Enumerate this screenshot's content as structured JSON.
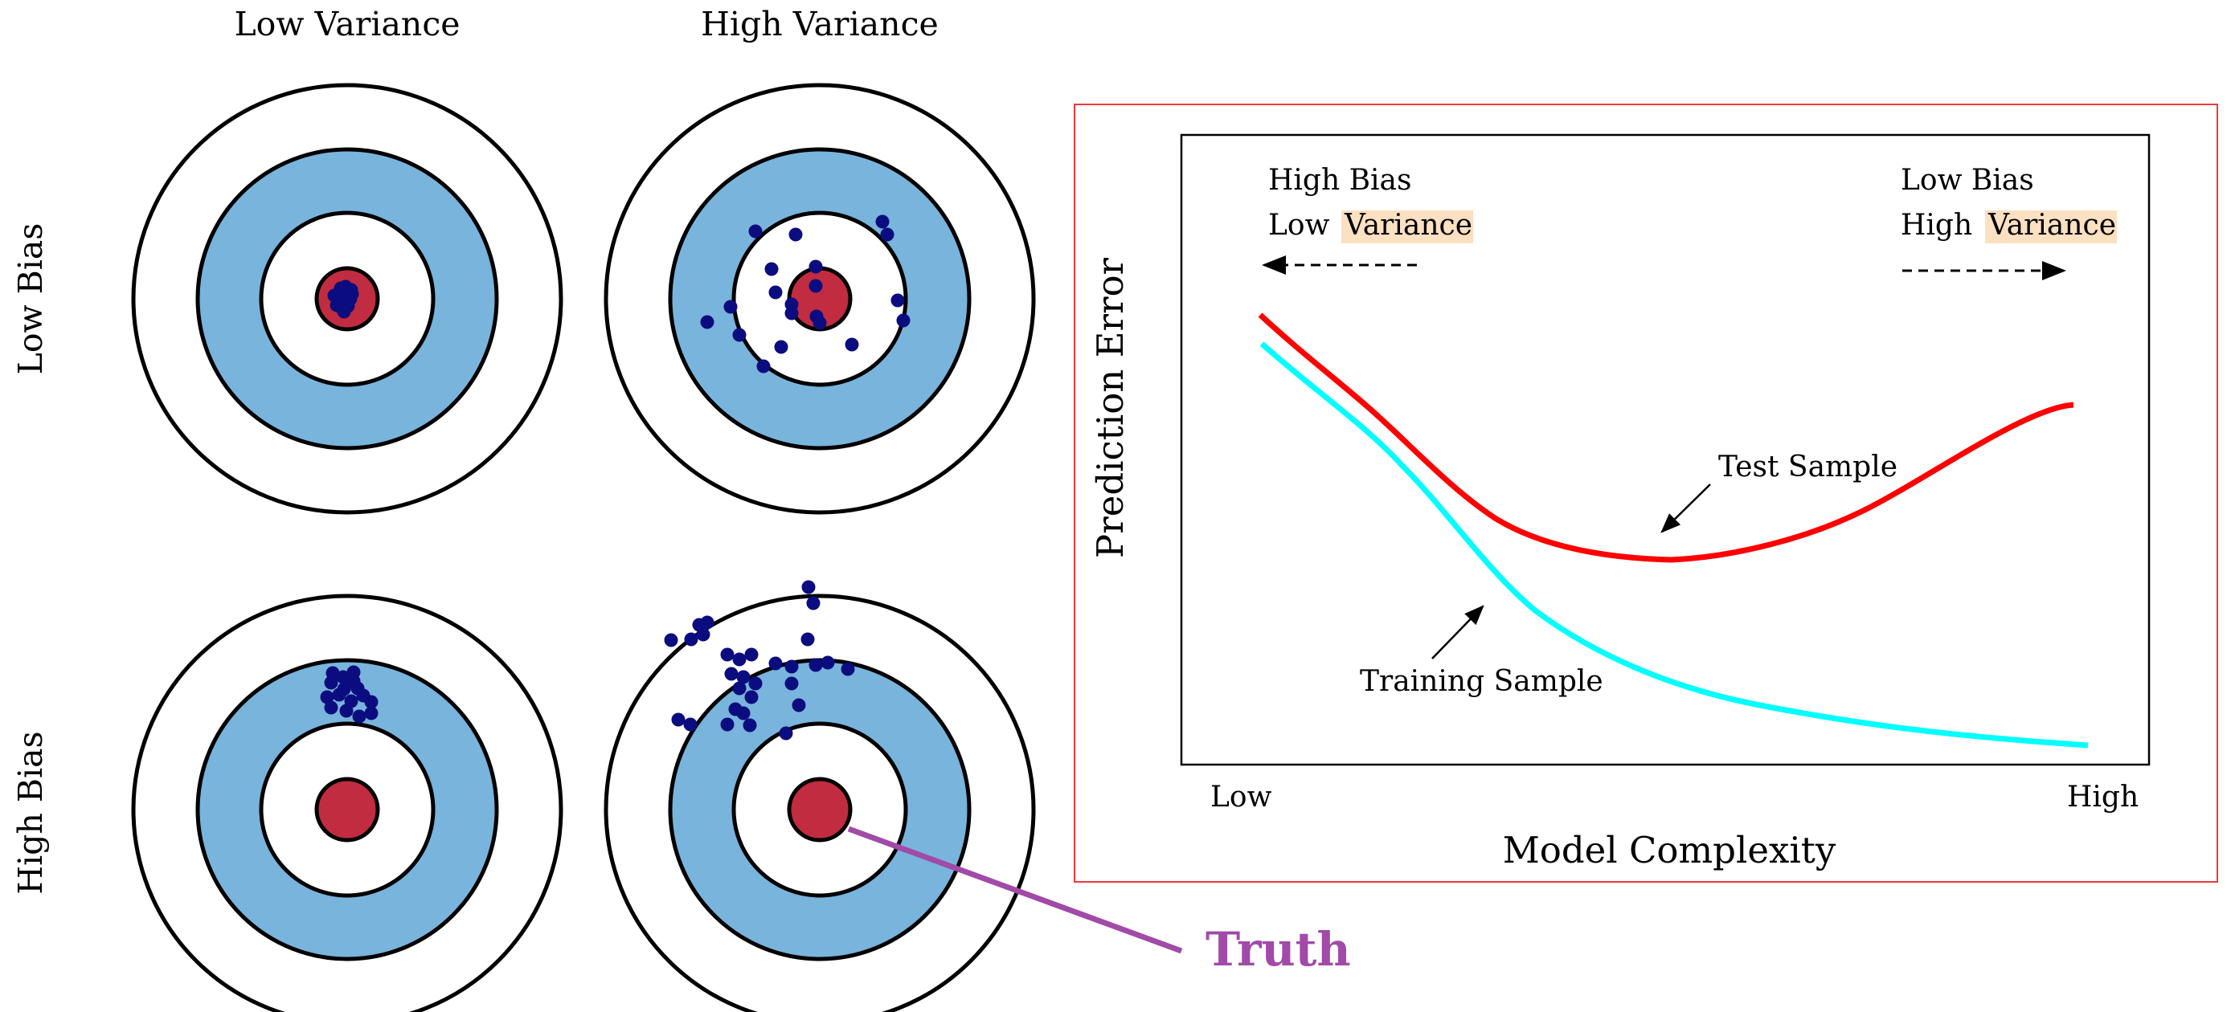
{
  "columns": {
    "low_variance": "Low Variance",
    "high_variance": "High Variance"
  },
  "rows": {
    "low_bias": "Low Bias",
    "high_bias": "High Bias"
  },
  "truth_label": "Truth",
  "colors": {
    "ring_blue": "#78b4dc",
    "bullseye_red": "#c12c40",
    "dots": "#0b0c7f",
    "truth_purple": "#a14aa8",
    "frame_red": "#ee3b3b",
    "test_curve": "#ff0000",
    "train_curve": "#00ffff"
  },
  "targets": [
    {
      "id": "low-bias-low-variance",
      "dots": [
        [
          -8,
          -13
        ],
        [
          -2,
          -15
        ],
        [
          5,
          -11
        ],
        [
          -16,
          -4
        ],
        [
          -10,
          -1
        ],
        [
          -3,
          -5
        ],
        [
          4,
          0
        ],
        [
          -13,
          8
        ],
        [
          -6,
          12
        ],
        [
          1,
          9
        ],
        [
          -10,
          4
        ],
        [
          6,
          -6
        ],
        [
          -4,
          16
        ]
      ]
    },
    {
      "id": "low-bias-high-variance",
      "dots": [
        [
          -80,
          -84
        ],
        [
          -30,
          -80
        ],
        [
          78,
          -96
        ],
        [
          84,
          -80
        ],
        [
          -60,
          -37
        ],
        [
          -5,
          -40
        ],
        [
          -55,
          -8
        ],
        [
          -35,
          7
        ],
        [
          -4,
          22
        ],
        [
          -5,
          -16
        ],
        [
          -140,
          29
        ],
        [
          -111,
          10
        ],
        [
          -100,
          45
        ],
        [
          97,
          2
        ],
        [
          104,
          27
        ],
        [
          40,
          57
        ],
        [
          -48,
          60
        ],
        [
          -70,
          84
        ],
        [
          0,
          30
        ],
        [
          -35,
          18
        ]
      ]
    },
    {
      "id": "high-bias-low-variance",
      "dots": [
        [
          -18,
          -170
        ],
        [
          -5,
          -165
        ],
        [
          8,
          -171
        ],
        [
          -20,
          -158
        ],
        [
          -4,
          -150
        ],
        [
          13,
          -151
        ],
        [
          -25,
          -140
        ],
        [
          -10,
          -143
        ],
        [
          5,
          -135
        ],
        [
          -20,
          -127
        ],
        [
          20,
          -142
        ],
        [
          30,
          -134
        ],
        [
          -1,
          -123
        ],
        [
          15,
          -116
        ],
        [
          30,
          -120
        ],
        [
          0,
          -158
        ],
        [
          8,
          -160
        ]
      ]
    },
    {
      "id": "high-bias-high-variance",
      "dots": [
        [
          -14,
          -277
        ],
        [
          -8,
          -257
        ],
        [
          -150,
          -230
        ],
        [
          -140,
          -233
        ],
        [
          -145,
          -218
        ],
        [
          -185,
          -211
        ],
        [
          -160,
          -212
        ],
        [
          -115,
          -193
        ],
        [
          -100,
          -187
        ],
        [
          -85,
          -193
        ],
        [
          -110,
          -169
        ],
        [
          -95,
          -165
        ],
        [
          -80,
          -157
        ],
        [
          -100,
          -151
        ],
        [
          -85,
          -140
        ],
        [
          -55,
          -182
        ],
        [
          -15,
          -212
        ],
        [
          -35,
          -178
        ],
        [
          -35,
          -157
        ],
        [
          -26,
          -130
        ],
        [
          -5,
          -180
        ],
        [
          10,
          -183
        ],
        [
          35,
          -175
        ],
        [
          -95,
          -120
        ],
        [
          -115,
          -106
        ],
        [
          -105,
          -125
        ],
        [
          -176,
          -112
        ],
        [
          -87,
          -105
        ],
        [
          -42,
          -95
        ],
        [
          -161,
          -106
        ]
      ]
    }
  ],
  "panel": {
    "ylabel": "Prediction Error",
    "xlabel": "Model Complexity",
    "x_low": "Low",
    "x_high": "High",
    "left_note": {
      "line1": "High Bias",
      "line2_prefix": "Low",
      "line2_highlight": "Variance"
    },
    "right_note": {
      "line1": "Low Bias",
      "line2_prefix": "High",
      "line2_highlight": "Variance"
    },
    "test_label": "Test Sample",
    "train_label": "Training Sample"
  }
}
